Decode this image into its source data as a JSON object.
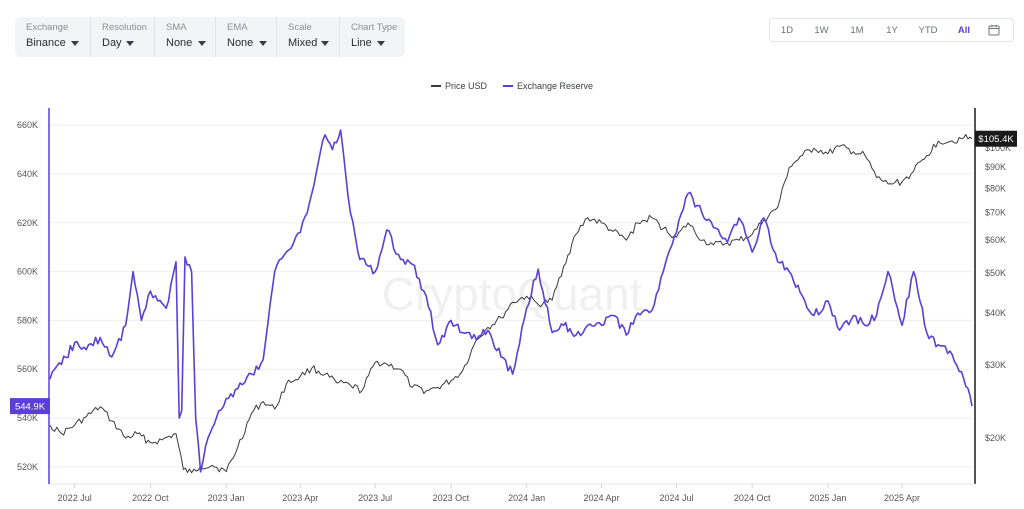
{
  "controls": [
    {
      "label": "Exchange",
      "value": "Binance"
    },
    {
      "label": "Resolution",
      "value": "Day"
    },
    {
      "label": "SMA",
      "value": "None"
    },
    {
      "label": "EMA",
      "value": "None"
    },
    {
      "label": "Scale",
      "value": "Mixed"
    },
    {
      "label": "Chart Type",
      "value": "Line"
    }
  ],
  "ranges": {
    "items": [
      "1D",
      "1W",
      "1M",
      "1Y",
      "YTD",
      "All"
    ],
    "active": "All",
    "calendar_icon": "calendar-icon"
  },
  "legend": {
    "price": "Price USD",
    "reserve": "Exchange Reserve"
  },
  "watermark": "CryptoQuant",
  "colors": {
    "price": "#3a3a3a",
    "reserve": "#5b3fd9",
    "price_badge": "#1a1a1a"
  },
  "current": {
    "reserve_label": "544.9K",
    "price_label": "$105.4K"
  },
  "chart_data": {
    "type": "line",
    "x_ticks": [
      "2022 Jul",
      "2022 Oct",
      "2023 Jan",
      "2023 Apr",
      "2023 Jul",
      "2023 Oct",
      "2024 Jan",
      "2024 Apr",
      "2024 Jul",
      "2024 Oct",
      "2025 Jan",
      "2025 Apr"
    ],
    "x_tick_dates": [
      "2022-07-01",
      "2022-10-01",
      "2023-01-01",
      "2023-04-01",
      "2023-07-01",
      "2023-10-01",
      "2024-01-01",
      "2024-04-01",
      "2024-07-01",
      "2024-10-01",
      "2025-01-01",
      "2025-04-01"
    ],
    "x_range": [
      "2022-06-01",
      "2025-06-25"
    ],
    "grid": true,
    "legend_position": "top-center",
    "left_axis": {
      "ticks": [
        "660K",
        "640K",
        "620K",
        "600K",
        "580K",
        "560K",
        "540K",
        "520K"
      ],
      "tick_values": [
        660000,
        640000,
        620000,
        600000,
        580000,
        560000,
        540000,
        520000
      ],
      "range": [
        513000,
        667000
      ]
    },
    "right_axis": {
      "scale": "log",
      "ticks": [
        "$100K",
        "$90K",
        "$80K",
        "$70K",
        "$60K",
        "$50K",
        "$40K",
        "$30K",
        "$20K"
      ],
      "tick_values": [
        100000,
        90000,
        80000,
        70000,
        60000,
        50000,
        40000,
        30000,
        20000
      ],
      "range": [
        15500,
        125000
      ]
    },
    "series": [
      {
        "name": "Exchange Reserve",
        "axis": "left",
        "x": [
          "2022-06-01",
          "2022-06-15",
          "2022-07-01",
          "2022-07-15",
          "2022-08-01",
          "2022-08-15",
          "2022-09-01",
          "2022-09-10",
          "2022-09-20",
          "2022-10-01",
          "2022-10-10",
          "2022-10-20",
          "2022-11-01",
          "2022-11-05",
          "2022-11-08",
          "2022-11-12",
          "2022-11-20",
          "2022-11-25",
          "2022-12-01",
          "2022-12-10",
          "2022-12-20",
          "2023-01-01",
          "2023-01-15",
          "2023-02-01",
          "2023-02-15",
          "2023-03-01",
          "2023-03-15",
          "2023-04-01",
          "2023-04-15",
          "2023-05-01",
          "2023-05-10",
          "2023-05-20",
          "2023-06-01",
          "2023-06-10",
          "2023-06-20",
          "2023-07-01",
          "2023-07-15",
          "2023-08-01",
          "2023-08-15",
          "2023-09-01",
          "2023-09-15",
          "2023-10-01",
          "2023-10-15",
          "2023-11-01",
          "2023-11-15",
          "2023-12-01",
          "2023-12-15",
          "2024-01-01",
          "2024-01-15",
          "2024-02-01",
          "2024-02-15",
          "2024-03-01",
          "2024-03-15",
          "2024-04-01",
          "2024-04-15",
          "2024-05-01",
          "2024-05-15",
          "2024-06-01",
          "2024-06-15",
          "2024-07-01",
          "2024-07-15",
          "2024-08-01",
          "2024-08-15",
          "2024-09-01",
          "2024-09-15",
          "2024-10-01",
          "2024-10-15",
          "2024-11-01",
          "2024-11-15",
          "2024-12-01",
          "2024-12-15",
          "2025-01-01",
          "2025-01-15",
          "2025-02-01",
          "2025-02-15",
          "2025-03-01",
          "2025-03-15",
          "2025-04-01",
          "2025-04-15",
          "2025-05-01",
          "2025-05-15",
          "2025-06-01",
          "2025-06-15",
          "2025-06-25"
        ],
        "values": [
          556000,
          562000,
          571000,
          568000,
          573000,
          565000,
          578000,
          600000,
          580000,
          592000,
          588000,
          585000,
          604000,
          540000,
          543000,
          606000,
          600000,
          540000,
          518000,
          532000,
          540000,
          548000,
          552000,
          558000,
          564000,
          600000,
          608000,
          616000,
          632000,
          656000,
          650000,
          658000,
          624000,
          608000,
          603000,
          600000,
          617000,
          605000,
          603000,
          590000,
          570000,
          580000,
          575000,
          572000,
          576000,
          565000,
          558000,
          585000,
          601000,
          575000,
          578000,
          574000,
          578000,
          578000,
          582000,
          574000,
          583000,
          584000,
          600000,
          616000,
          632000,
          624000,
          618000,
          612000,
          622000,
          608000,
          622000,
          604000,
          600000,
          590000,
          582000,
          588000,
          576000,
          582000,
          578000,
          582000,
          600000,
          578000,
          600000,
          575000,
          570000,
          566000,
          556000,
          544900
        ]
      },
      {
        "name": "Price USD",
        "axis": "right",
        "x": [
          "2022-06-01",
          "2022-06-15",
          "2022-07-01",
          "2022-07-15",
          "2022-08-01",
          "2022-08-15",
          "2022-09-01",
          "2022-09-15",
          "2022-10-01",
          "2022-10-15",
          "2022-11-01",
          "2022-11-10",
          "2022-11-20",
          "2022-12-01",
          "2022-12-15",
          "2023-01-01",
          "2023-01-15",
          "2023-02-01",
          "2023-02-15",
          "2023-03-01",
          "2023-03-15",
          "2023-04-01",
          "2023-04-15",
          "2023-05-01",
          "2023-05-15",
          "2023-06-01",
          "2023-06-15",
          "2023-07-01",
          "2023-07-15",
          "2023-08-01",
          "2023-08-15",
          "2023-09-01",
          "2023-09-15",
          "2023-10-01",
          "2023-10-15",
          "2023-11-01",
          "2023-11-15",
          "2023-12-01",
          "2023-12-15",
          "2024-01-01",
          "2024-01-15",
          "2024-02-01",
          "2024-02-15",
          "2024-03-01",
          "2024-03-15",
          "2024-04-01",
          "2024-04-15",
          "2024-05-01",
          "2024-05-15",
          "2024-06-01",
          "2024-06-15",
          "2024-07-01",
          "2024-07-15",
          "2024-08-01",
          "2024-08-15",
          "2024-09-01",
          "2024-09-15",
          "2024-10-01",
          "2024-10-15",
          "2024-11-01",
          "2024-11-15",
          "2024-12-01",
          "2024-12-15",
          "2025-01-01",
          "2025-01-15",
          "2025-02-01",
          "2025-02-15",
          "2025-03-01",
          "2025-03-15",
          "2025-04-01",
          "2025-04-15",
          "2025-05-01",
          "2025-05-15",
          "2025-06-01",
          "2025-06-15",
          "2025-06-25"
        ],
        "values": [
          21500,
          20500,
          21500,
          22500,
          23800,
          22000,
          20000,
          20500,
          19500,
          19800,
          20500,
          16800,
          16500,
          17100,
          17200,
          16600,
          19000,
          23000,
          24500,
          23500,
          27000,
          28200,
          29500,
          28500,
          27200,
          26800,
          26000,
          30500,
          30200,
          29300,
          26500,
          26000,
          26500,
          27500,
          29000,
          34500,
          37000,
          39000,
          42500,
          44000,
          42000,
          43000,
          52000,
          62000,
          68000,
          66000,
          63000,
          60000,
          66000,
          68000,
          64000,
          61000,
          66000,
          60000,
          58500,
          59000,
          60000,
          62000,
          67000,
          72000,
          90000,
          96000,
          100000,
          97000,
          101000,
          98000,
          96000,
          85000,
          82000,
          83000,
          88000,
          96000,
          104000,
          104000,
          106000,
          105400
        ]
      }
    ]
  }
}
